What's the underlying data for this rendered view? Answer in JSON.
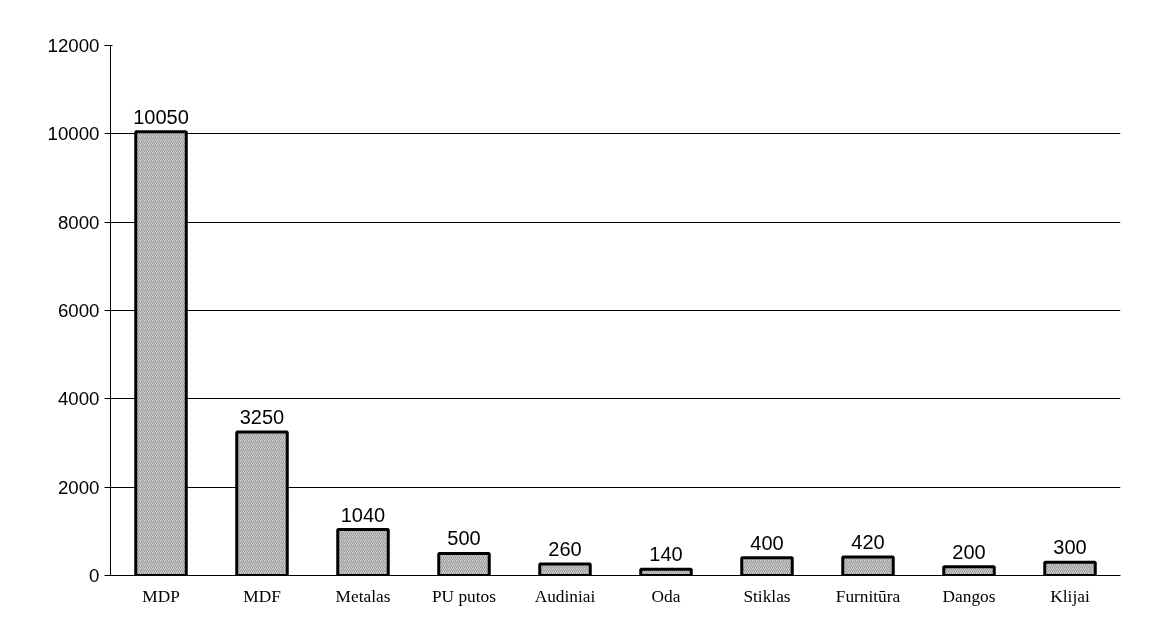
{
  "chart_data": {
    "type": "bar",
    "categories": [
      "MDP",
      "MDF",
      "Metalas",
      "PU putos",
      "Audiniai",
      "Oda",
      "Stiklas",
      "Furnitūra",
      "Dangos",
      "Klijai"
    ],
    "values": [
      10050,
      3250,
      1040,
      500,
      260,
      140,
      400,
      420,
      200,
      300
    ],
    "color": "#c8c8c8",
    "ylim": [
      0,
      12000
    ],
    "yticks": [
      0,
      2000,
      4000,
      6000,
      8000,
      10000,
      12000
    ],
    "grid": "y",
    "data_labels": true
  }
}
